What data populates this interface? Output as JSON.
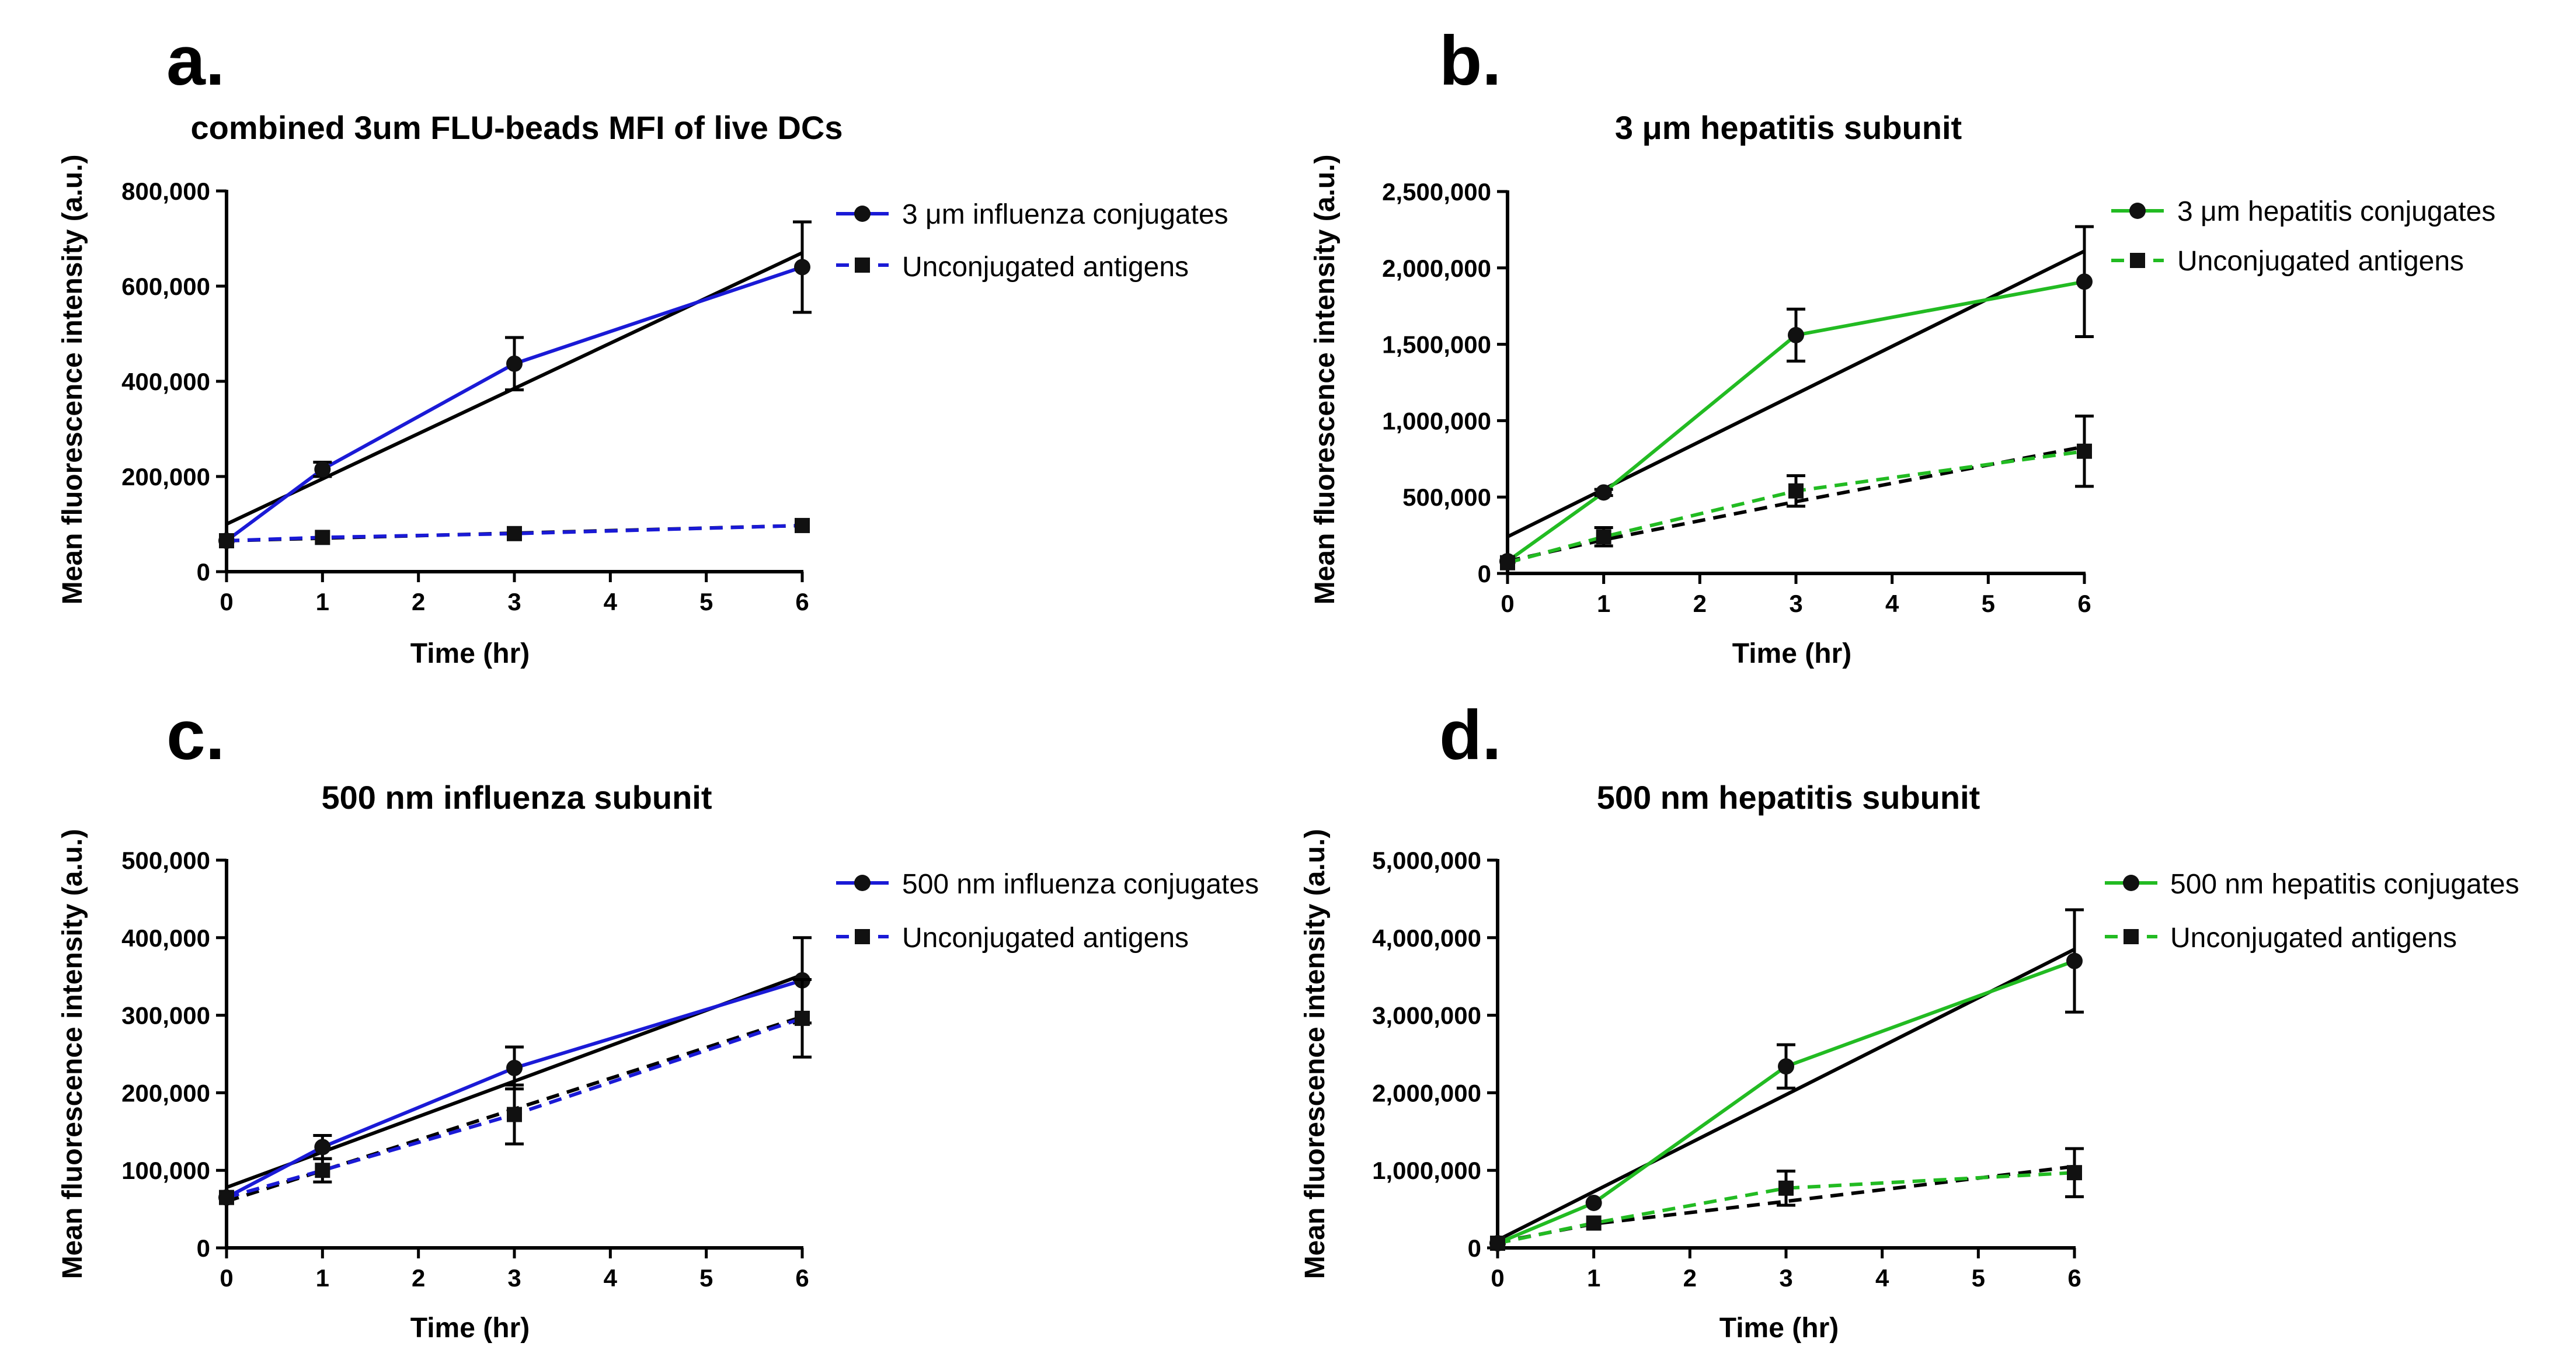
{
  "chart_data": [
    {
      "type": "line",
      "panel_label": "a.",
      "title": "combined 3um FLU-beads MFI of live DCs",
      "xlabel": "Time (hr)",
      "ylabel": "Mean fluorescence intensity (a.u.)",
      "xlim": [
        0,
        6
      ],
      "ylim": [
        0,
        800000
      ],
      "xticks": [
        "0",
        "1",
        "2",
        "3",
        "4",
        "5",
        "6"
      ],
      "yticks": [
        "0",
        "200,000",
        "400,000",
        "600,000",
        "800,000"
      ],
      "ytick_values": [
        0,
        200000,
        400000,
        600000,
        800000
      ],
      "x": [
        0,
        1,
        3,
        6
      ],
      "series": [
        {
          "name": "3 μm influenza conjugates",
          "color": "#1a1ad6",
          "marker": "circle",
          "dash": "solid",
          "values": [
            65000,
            215000,
            437000,
            640000
          ],
          "errors": [
            0,
            15000,
            55000,
            95000
          ]
        },
        {
          "name": "Unconjugated antigens",
          "color": "#1a1ad6",
          "marker": "square",
          "dash": "dashed",
          "values": [
            65000,
            72000,
            80000,
            97000
          ],
          "errors": [
            0,
            0,
            0,
            0
          ]
        }
      ],
      "fits": [
        {
          "color": "#000000",
          "dash": "solid",
          "x": [
            0,
            6
          ],
          "y": [
            100000,
            670000
          ]
        },
        {
          "color": "#000000",
          "dash": "dashed",
          "x": [
            0,
            6
          ],
          "y": [
            65000,
            97000
          ]
        }
      ],
      "legend": "right"
    },
    {
      "type": "line",
      "panel_label": "b.",
      "title": "3 μm hepatitis subunit",
      "xlabel": "Time (hr)",
      "ylabel": "Mean fluorescence intensity (a.u.)",
      "xlim": [
        0,
        6
      ],
      "ylim": [
        0,
        2500000
      ],
      "xticks": [
        "0",
        "1",
        "2",
        "3",
        "4",
        "5",
        "6"
      ],
      "yticks": [
        "0",
        "500,000",
        "1,000,000",
        "1,500,000",
        "2,000,000",
        "2,500,000"
      ],
      "ytick_values": [
        0,
        500000,
        1000000,
        1500000,
        2000000,
        2500000
      ],
      "x": [
        0,
        1,
        3,
        6
      ],
      "series": [
        {
          "name": "3 μm hepatitis conjugates",
          "color": "#22bb22",
          "marker": "circle",
          "dash": "solid",
          "values": [
            80000,
            530000,
            1560000,
            1910000
          ],
          "errors": [
            0,
            20000,
            170000,
            360000
          ]
        },
        {
          "name": "Unconjugated antigens",
          "color": "#22bb22",
          "marker": "square",
          "dash": "dashed",
          "values": [
            70000,
            240000,
            540000,
            800000
          ],
          "errors": [
            0,
            60000,
            100000,
            230000
          ]
        }
      ],
      "fits": [
        {
          "color": "#000000",
          "dash": "solid",
          "x": [
            0,
            6
          ],
          "y": [
            240000,
            2110000
          ]
        },
        {
          "color": "#000000",
          "dash": "dashed",
          "x": [
            0,
            1,
            3,
            6
          ],
          "y": [
            80000,
            220000,
            470000,
            830000
          ]
        }
      ],
      "legend": "right"
    },
    {
      "type": "line",
      "panel_label": "c.",
      "title": "500 nm influenza subunit",
      "xlabel": "Time (hr)",
      "ylabel": "Mean fluorescence intensity (a.u.)",
      "xlim": [
        0,
        6
      ],
      "ylim": [
        0,
        500000
      ],
      "xticks": [
        "0",
        "1",
        "2",
        "3",
        "4",
        "5",
        "6"
      ],
      "yticks": [
        "0",
        "100,000",
        "200,000",
        "300,000",
        "400,000",
        "500,000"
      ],
      "ytick_values": [
        0,
        100000,
        200000,
        300000,
        400000,
        500000
      ],
      "x": [
        0,
        1,
        3,
        6
      ],
      "series": [
        {
          "name": "500 nm influenza conjugates",
          "color": "#1a1ad6",
          "marker": "circle",
          "dash": "solid",
          "values": [
            65000,
            130000,
            232000,
            345000
          ],
          "errors": [
            0,
            15000,
            27000,
            55000
          ]
        },
        {
          "name": "Unconjugated antigens",
          "color": "#1a1ad6",
          "marker": "square",
          "dash": "dashed",
          "values": [
            65000,
            100000,
            172000,
            296000
          ],
          "errors": [
            0,
            15000,
            38000,
            50000
          ]
        }
      ],
      "fits": [
        {
          "color": "#000000",
          "dash": "solid",
          "x": [
            0,
            6
          ],
          "y": [
            78000,
            352000
          ]
        },
        {
          "color": "#000000",
          "dash": "dashed",
          "x": [
            0,
            6
          ],
          "y": [
            60000,
            298000
          ]
        }
      ],
      "legend": "right"
    },
    {
      "type": "line",
      "panel_label": "d.",
      "title": "500 nm hepatitis subunit",
      "xlabel": "Time (hr)",
      "ylabel": "Mean fluorescence intensity (a.u.)",
      "xlim": [
        0,
        6
      ],
      "ylim": [
        0,
        5000000
      ],
      "xticks": [
        "0",
        "1",
        "2",
        "3",
        "4",
        "5",
        "6"
      ],
      "yticks": [
        "0",
        "1,000,000",
        "2,000,000",
        "3,000,000",
        "4,000,000",
        "5,000,000"
      ],
      "ytick_values": [
        0,
        1000000,
        2000000,
        3000000,
        4000000,
        5000000
      ],
      "x": [
        0,
        1,
        3,
        6
      ],
      "series": [
        {
          "name": "500 nm hepatitis conjugates",
          "color": "#22bb22",
          "marker": "circle",
          "dash": "solid",
          "values": [
            60000,
            580000,
            2340000,
            3700000
          ],
          "errors": [
            0,
            0,
            280000,
            660000
          ]
        },
        {
          "name": "Unconjugated antigens",
          "color": "#22bb22",
          "marker": "square",
          "dash": "dashed",
          "values": [
            60000,
            320000,
            770000,
            970000
          ],
          "errors": [
            0,
            0,
            220000,
            310000
          ]
        }
      ],
      "fits": [
        {
          "color": "#000000",
          "dash": "solid",
          "x": [
            0,
            6
          ],
          "y": [
            100000,
            3850000
          ]
        },
        {
          "color": "#000000",
          "dash": "dashed",
          "x": [
            0,
            1,
            3,
            6
          ],
          "y": [
            70000,
            310000,
            600000,
            1050000
          ]
        }
      ],
      "legend": "right"
    }
  ]
}
